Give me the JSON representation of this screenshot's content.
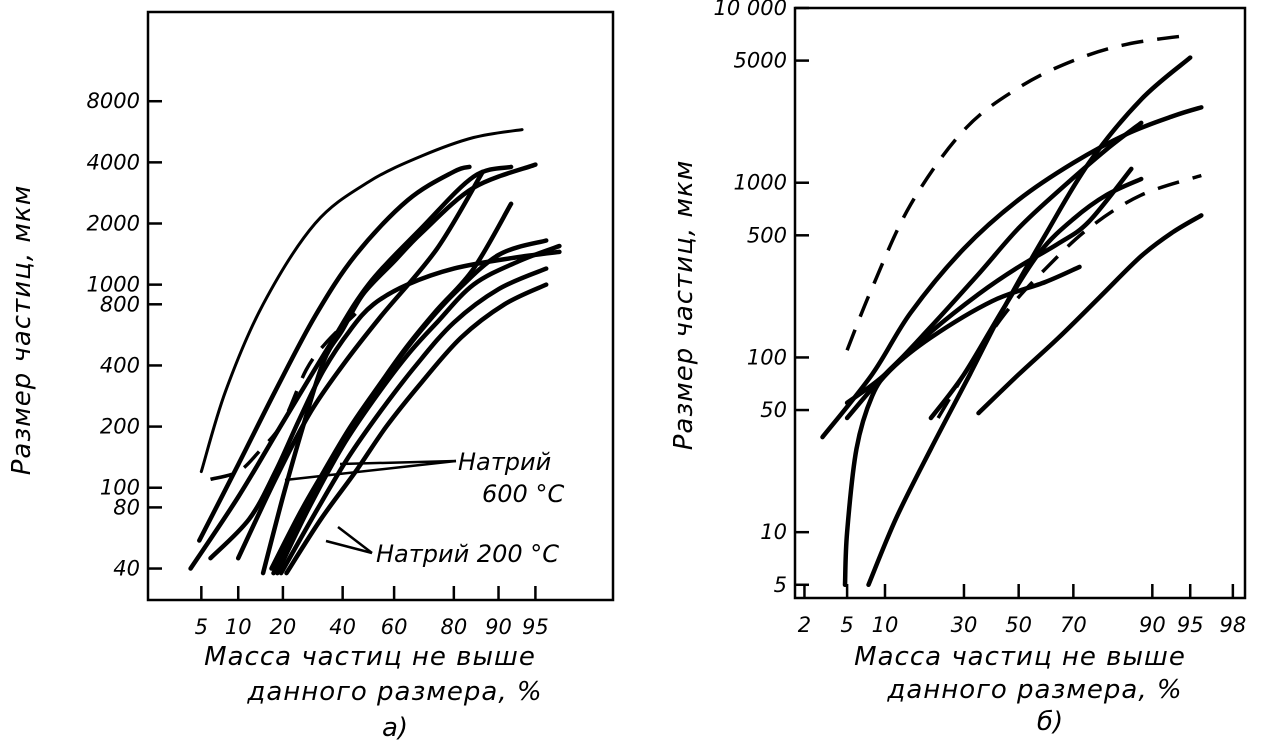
{
  "chart_data": [
    {
      "type": "line",
      "sublabel": "а)",
      "title": "",
      "xlabel_lines": [
        "Масса частиц не выше",
        "данного размера, %"
      ],
      "ylabel": "Размер частиц, мкм",
      "x_scale": "probability",
      "y_scale": "log",
      "xlim": [
        1.5,
        99.2
      ],
      "ylim": [
        28,
        22000
      ],
      "grid": false,
      "x_ticks": [
        {
          "v": 5,
          "label": "5"
        },
        {
          "v": 10,
          "label": "10"
        },
        {
          "v": 20,
          "label": "20"
        },
        {
          "v": 40,
          "label": "40"
        },
        {
          "v": 60,
          "label": "60"
        },
        {
          "v": 80,
          "label": "80"
        },
        {
          "v": 90,
          "label": "90"
        },
        {
          "v": 95,
          "label": "95"
        }
      ],
      "y_ticks": [
        {
          "v": 40,
          "label": "40"
        },
        {
          "v": 80,
          "label": "80"
        },
        {
          "v": 100,
          "label": "100"
        },
        {
          "v": 200,
          "label": "200"
        },
        {
          "v": 400,
          "label": "400"
        },
        {
          "v": 800,
          "label": "800"
        },
        {
          "v": 1000,
          "label": "1000"
        },
        {
          "v": 2000,
          "label": "2000"
        },
        {
          "v": 4000,
          "label": "4000"
        },
        {
          "v": 8000,
          "label": "8000"
        }
      ],
      "annotations": [
        {
          "lines": [
            "Натрий",
            "600 °С"
          ]
        },
        {
          "lines": [
            "Натрий 200 °С"
          ]
        }
      ],
      "series": [
        {
          "style": "solid-thin",
          "points": [
            [
              5,
              120
            ],
            [
              8,
              300
            ],
            [
              15,
              800
            ],
            [
              30,
              2000
            ],
            [
              50,
              3200
            ],
            [
              70,
              4300
            ],
            [
              85,
              5300
            ],
            [
              93.5,
              5800
            ]
          ]
        },
        {
          "style": "dashed",
          "points": [
            [
              6,
              110
            ],
            [
              10,
              120
            ],
            [
              14,
              150
            ],
            [
              20,
              210
            ],
            [
              27,
              380
            ],
            [
              34,
              520
            ],
            [
              45,
              720
            ]
          ]
        },
        {
          "style": "solid",
          "points": [
            [
              4.8,
              55
            ],
            [
              10,
              130
            ],
            [
              18,
              300
            ],
            [
              30,
              700
            ],
            [
              45,
              1400
            ],
            [
              65,
              2600
            ],
            [
              80,
              3600
            ],
            [
              84,
              3800
            ]
          ]
        },
        {
          "style": "solid",
          "points": [
            [
              4,
              40
            ],
            [
              10,
              90
            ],
            [
              20,
              210
            ],
            [
              35,
              500
            ],
            [
              50,
              1000
            ],
            [
              70,
              1900
            ],
            [
              85,
              3400
            ],
            [
              92,
              3800
            ]
          ]
        },
        {
          "style": "solid",
          "points": [
            [
              6,
              45
            ],
            [
              12,
              70
            ],
            [
              18,
              120
            ],
            [
              25,
              220
            ],
            [
              33,
              380
            ],
            [
              43,
              600
            ],
            [
              52,
              800
            ],
            [
              65,
              1000
            ],
            [
              80,
              1200
            ],
            [
              92,
              1350
            ],
            [
              97,
              1450
            ]
          ]
        },
        {
          "style": "solid",
          "points": [
            [
              10,
              45
            ],
            [
              18,
              110
            ],
            [
              28,
              230
            ],
            [
              40,
              400
            ],
            [
              55,
              700
            ],
            [
              75,
              1500
            ],
            [
              87,
              3600
            ]
          ]
        },
        {
          "style": "solid",
          "points": [
            [
              15,
              38
            ],
            [
              20,
              90
            ],
            [
              26,
              200
            ],
            [
              33,
              420
            ],
            [
              40,
              600
            ],
            [
              48,
              900
            ],
            [
              60,
              1300
            ],
            [
              70,
              1800
            ],
            [
              85,
              3000
            ],
            [
              95,
              3900
            ]
          ]
        },
        {
          "style": "solid",
          "points": [
            [
              17,
              40
            ],
            [
              25,
              75
            ],
            [
              33,
              120
            ],
            [
              43,
              200
            ],
            [
              55,
              330
            ],
            [
              65,
              500
            ],
            [
              75,
              750
            ],
            [
              85,
              1200
            ],
            [
              92,
              2500
            ]
          ]
        },
        {
          "style": "solid",
          "points": [
            [
              17.5,
              38
            ],
            [
              25,
              70
            ],
            [
              35,
              130
            ],
            [
              48,
              240
            ],
            [
              60,
              400
            ],
            [
              70,
              600
            ],
            [
              80,
              900
            ],
            [
              90,
              1400
            ],
            [
              96,
              1650
            ]
          ]
        },
        {
          "style": "solid",
          "points": [
            [
              18.5,
              38
            ],
            [
              28,
              80
            ],
            [
              40,
              160
            ],
            [
              52,
              270
            ],
            [
              65,
              450
            ],
            [
              75,
              650
            ],
            [
              85,
              1000
            ],
            [
              93,
              1300
            ],
            [
              97,
              1550
            ]
          ]
        },
        {
          "style": "solid",
          "points": [
            [
              19.5,
              38
            ],
            [
              30,
              75
            ],
            [
              42,
              140
            ],
            [
              55,
              240
            ],
            [
              68,
              400
            ],
            [
              80,
              650
            ],
            [
              90,
              950
            ],
            [
              96,
              1200
            ]
          ]
        },
        {
          "style": "solid",
          "points": [
            [
              21,
              38
            ],
            [
              32,
              70
            ],
            [
              45,
              120
            ],
            [
              57,
              200
            ],
            [
              70,
              330
            ],
            [
              82,
              550
            ],
            [
              91,
              800
            ],
            [
              96,
              1000
            ]
          ]
        }
      ]
    },
    {
      "type": "line",
      "sublabel": "б)",
      "title": "",
      "xlabel_lines": [
        "Масса частиц не выше",
        "данного размера, %"
      ],
      "ylabel": "Размер частиц, мкм",
      "x_scale": "probability",
      "y_scale": "log",
      "xlim": [
        1.6,
        98.5
      ],
      "ylim": [
        4.2,
        10000
      ],
      "grid": false,
      "x_ticks": [
        {
          "v": 2,
          "label": "2"
        },
        {
          "v": 5,
          "label": "5"
        },
        {
          "v": 10,
          "label": "10"
        },
        {
          "v": 30,
          "label": "30"
        },
        {
          "v": 50,
          "label": "50"
        },
        {
          "v": 70,
          "label": "70"
        },
        {
          "v": 90,
          "label": "90"
        },
        {
          "v": 95,
          "label": "95"
        },
        {
          "v": 98,
          "label": "98"
        }
      ],
      "y_ticks": [
        {
          "v": 5,
          "label": "5"
        },
        {
          "v": 10,
          "label": "10"
        },
        {
          "v": 50,
          "label": "50"
        },
        {
          "v": 100,
          "label": "100"
        },
        {
          "v": 500,
          "label": "500"
        },
        {
          "v": 1000,
          "label": "1000"
        },
        {
          "v": 5000,
          "label": "5000"
        },
        {
          "v": 10000,
          "label": "10 000"
        }
      ],
      "series": [
        {
          "style": "dashed",
          "points": [
            [
              5,
              110
            ],
            [
              8,
              250
            ],
            [
              15,
              750
            ],
            [
              30,
              2000
            ],
            [
              50,
              3500
            ],
            [
              70,
              5000
            ],
            [
              85,
              6200
            ],
            [
              95,
              7000
            ]
          ]
        },
        {
          "style": "solid",
          "points": [
            [
              3,
              35
            ],
            [
              8,
              80
            ],
            [
              15,
              180
            ],
            [
              30,
              420
            ],
            [
              50,
              800
            ],
            [
              70,
              1300
            ],
            [
              85,
              1900
            ],
            [
              93,
              2400
            ],
            [
              96,
              2700
            ]
          ]
        },
        {
          "style": "solid",
          "points": [
            [
              5,
              55
            ],
            [
              10,
              80
            ],
            [
              20,
              150
            ],
            [
              35,
              300
            ],
            [
              50,
              550
            ],
            [
              65,
              900
            ],
            [
              80,
              1550
            ],
            [
              88,
              2200
            ]
          ]
        },
        {
          "style": "solid",
          "points": [
            [
              5,
              45
            ],
            [
              10,
              80
            ],
            [
              20,
              140
            ],
            [
              35,
              230
            ],
            [
              50,
              330
            ],
            [
              65,
              450
            ],
            [
              75,
              600
            ],
            [
              86,
              1200
            ]
          ]
        },
        {
          "style": "solid",
          "points": [
            [
              4.8,
              5
            ],
            [
              5,
              10
            ],
            [
              6,
              30
            ],
            [
              8,
              60
            ],
            [
              11,
              85
            ],
            [
              20,
              130
            ],
            [
              40,
              210
            ],
            [
              60,
              270
            ],
            [
              72,
              330
            ]
          ]
        },
        {
          "style": "solid",
          "points": [
            [
              7.5,
              5
            ],
            [
              12,
              12
            ],
            [
              20,
              30
            ],
            [
              32,
              80
            ],
            [
              45,
              200
            ],
            [
              60,
              500
            ],
            [
              75,
              1300
            ],
            [
              88,
              3000
            ],
            [
              95,
              5200
            ]
          ]
        },
        {
          "style": "solid",
          "points": [
            [
              20,
              45
            ],
            [
              30,
              80
            ],
            [
              45,
              200
            ],
            [
              58,
              400
            ],
            [
              70,
              620
            ],
            [
              80,
              850
            ],
            [
              88,
              1050
            ]
          ]
        },
        {
          "style": "dashed",
          "points": [
            [
              22,
              45
            ],
            [
              32,
              90
            ],
            [
              45,
              180
            ],
            [
              60,
              320
            ],
            [
              75,
              550
            ],
            [
              88,
              850
            ],
            [
              96,
              1100
            ]
          ]
        },
        {
          "style": "solid",
          "points": [
            [
              35,
              48
            ],
            [
              50,
              80
            ],
            [
              65,
              130
            ],
            [
              78,
              220
            ],
            [
              88,
              380
            ],
            [
              93,
              520
            ],
            [
              96,
              650
            ]
          ]
        }
      ]
    }
  ]
}
